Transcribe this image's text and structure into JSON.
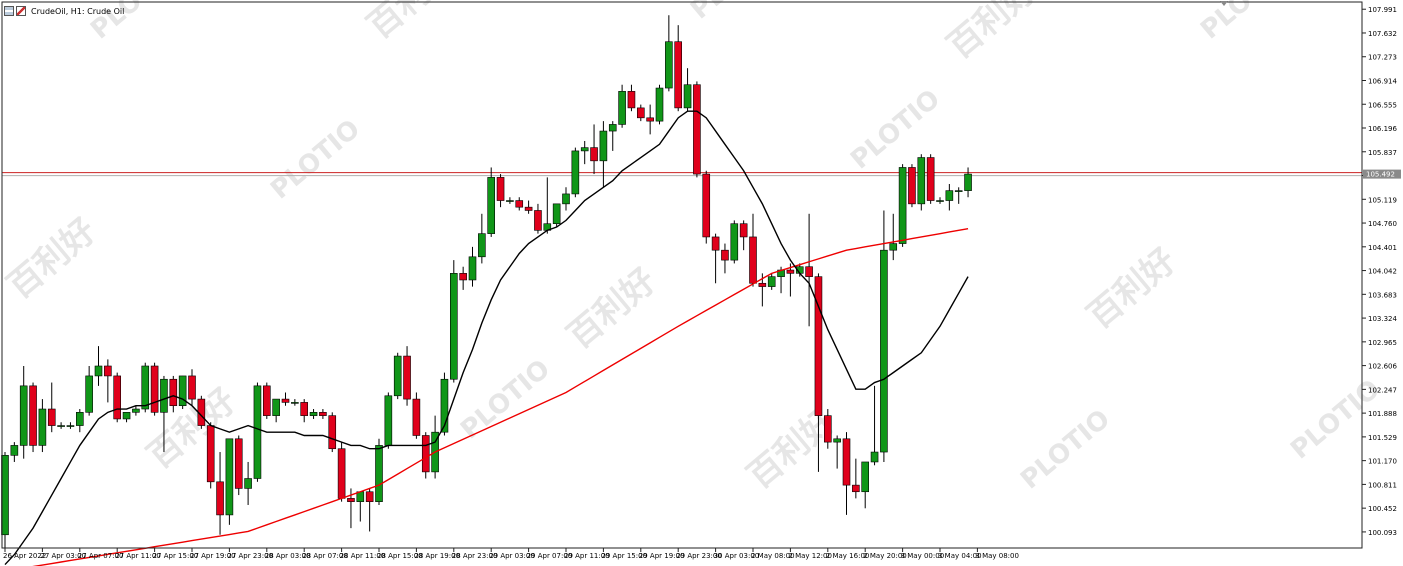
{
  "header": {
    "symbol": "CrudeOil",
    "timeframe": "H1",
    "description": "Crude Oil",
    "title": "CrudeOil, H1:  Crude Oil"
  },
  "icons": [
    "chart-menu-icon",
    "chart-type-icon",
    "collapse-arrow-icon"
  ],
  "watermark": {
    "text": "PLOTIO",
    "chinese": "百利好"
  },
  "colors": {
    "bull": "#109618",
    "bear": "#e0001b",
    "ma_fast": "#000000",
    "ma_slow": "#ee0000",
    "price_line": "#cc2222",
    "grid_axis": "#222222",
    "tag_bg": "#8a8a8a"
  },
  "current_price": "105.492",
  "chart_data": {
    "type": "candlestick",
    "title": "",
    "y_range": [
      99.85,
      108.1
    ],
    "y_ticks": [
      "107.991",
      "107.632",
      "107.273",
      "106.914",
      "106.555",
      "106.196",
      "105.837",
      "105.478",
      "105.119",
      "104.760",
      "104.401",
      "104.042",
      "103.683",
      "103.324",
      "102.965",
      "102.606",
      "102.247",
      "101.888",
      "101.529",
      "101.170",
      "100.811",
      "100.452",
      "100.093"
    ],
    "x_ticks": [
      "26 Apr 2022",
      "27 Apr 03:00",
      "27 Apr 07:00",
      "27 Apr 11:00",
      "27 Apr 15:00",
      "27 Apr 19:00",
      "27 Apr 23:00",
      "28 Apr 03:00",
      "28 Apr 07:00",
      "28 Apr 11:00",
      "28 Apr 15:00",
      "28 Apr 19:00",
      "28 Apr 23:00",
      "29 Apr 03:00",
      "29 Apr 07:00",
      "29 Apr 11:00",
      "29 Apr 15:00",
      "29 Apr 19:00",
      "29 Apr 23:00",
      "30 Apr 03:00",
      "2 May 08:00",
      "2 May 12:00",
      "2 May 16:00",
      "2 May 20:00",
      "3 May 00:00",
      "3 May 04:00",
      "3 May 08:00"
    ],
    "x_tick_bar_index": [
      0,
      4,
      8,
      12,
      16,
      20,
      24,
      28,
      32,
      36,
      40,
      44,
      48,
      52,
      56,
      60,
      64,
      68,
      72,
      76,
      80,
      84,
      88,
      92,
      96,
      100,
      104
    ],
    "candles": [
      {
        "o": 100.05,
        "h": 101.3,
        "l": 99.85,
        "c": 101.25
      },
      {
        "o": 101.25,
        "h": 101.45,
        "l": 101.15,
        "c": 101.4
      },
      {
        "o": 101.4,
        "h": 102.6,
        "l": 101.2,
        "c": 102.3
      },
      {
        "o": 102.3,
        "h": 102.35,
        "l": 101.3,
        "c": 101.4
      },
      {
        "o": 101.4,
        "h": 102.1,
        "l": 101.3,
        "c": 101.95
      },
      {
        "o": 101.95,
        "h": 102.35,
        "l": 101.6,
        "c": 101.7
      },
      {
        "o": 101.7,
        "h": 101.75,
        "l": 101.65,
        "c": 101.7
      },
      {
        "o": 101.7,
        "h": 101.75,
        "l": 101.65,
        "c": 101.7
      },
      {
        "o": 101.7,
        "h": 101.95,
        "l": 101.6,
        "c": 101.9
      },
      {
        "o": 101.9,
        "h": 102.6,
        "l": 101.85,
        "c": 102.45
      },
      {
        "o": 102.45,
        "h": 102.9,
        "l": 102.3,
        "c": 102.6
      },
      {
        "o": 102.6,
        "h": 102.7,
        "l": 102.05,
        "c": 102.45
      },
      {
        "o": 102.45,
        "h": 102.5,
        "l": 101.75,
        "c": 101.8
      },
      {
        "o": 101.8,
        "h": 101.9,
        "l": 101.75,
        "c": 101.9
      },
      {
        "o": 101.9,
        "h": 102.0,
        "l": 101.85,
        "c": 101.95
      },
      {
        "o": 101.95,
        "h": 102.65,
        "l": 101.9,
        "c": 102.6
      },
      {
        "o": 102.6,
        "h": 102.65,
        "l": 101.85,
        "c": 101.9
      },
      {
        "o": 101.9,
        "h": 102.45,
        "l": 101.3,
        "c": 102.4
      },
      {
        "o": 102.4,
        "h": 102.45,
        "l": 101.9,
        "c": 102.0
      },
      {
        "o": 102.0,
        "h": 102.45,
        "l": 101.95,
        "c": 102.45
      },
      {
        "o": 102.45,
        "h": 102.55,
        "l": 102.0,
        "c": 102.1
      },
      {
        "o": 102.1,
        "h": 102.15,
        "l": 101.65,
        "c": 101.7
      },
      {
        "o": 101.7,
        "h": 101.75,
        "l": 100.75,
        "c": 100.85
      },
      {
        "o": 100.85,
        "h": 101.3,
        "l": 100.05,
        "c": 100.35
      },
      {
        "o": 100.35,
        "h": 101.5,
        "l": 100.2,
        "c": 101.5
      },
      {
        "o": 101.5,
        "h": 101.55,
        "l": 100.65,
        "c": 100.75
      },
      {
        "o": 100.75,
        "h": 101.15,
        "l": 100.5,
        "c": 100.9
      },
      {
        "o": 100.9,
        "h": 102.35,
        "l": 100.85,
        "c": 102.3
      },
      {
        "o": 102.3,
        "h": 102.35,
        "l": 101.8,
        "c": 101.85
      },
      {
        "o": 101.85,
        "h": 102.1,
        "l": 101.75,
        "c": 102.1
      },
      {
        "o": 102.1,
        "h": 102.2,
        "l": 102.0,
        "c": 102.05
      },
      {
        "o": 102.05,
        "h": 102.1,
        "l": 102.0,
        "c": 102.05
      },
      {
        "o": 102.05,
        "h": 102.1,
        "l": 101.75,
        "c": 101.85
      },
      {
        "o": 101.85,
        "h": 101.95,
        "l": 101.8,
        "c": 101.9
      },
      {
        "o": 101.9,
        "h": 101.95,
        "l": 101.8,
        "c": 101.85
      },
      {
        "o": 101.85,
        "h": 101.9,
        "l": 101.3,
        "c": 101.35
      },
      {
        "o": 101.35,
        "h": 101.45,
        "l": 100.55,
        "c": 100.6
      },
      {
        "o": 100.6,
        "h": 100.75,
        "l": 100.15,
        "c": 100.55
      },
      {
        "o": 100.55,
        "h": 100.7,
        "l": 100.25,
        "c": 100.7
      },
      {
        "o": 100.7,
        "h": 100.75,
        "l": 100.1,
        "c": 100.55
      },
      {
        "o": 100.55,
        "h": 101.5,
        "l": 100.5,
        "c": 101.4
      },
      {
        "o": 101.4,
        "h": 102.2,
        "l": 101.35,
        "c": 102.15
      },
      {
        "o": 102.15,
        "h": 102.8,
        "l": 102.1,
        "c": 102.75
      },
      {
        "o": 102.75,
        "h": 102.9,
        "l": 102.0,
        "c": 102.1
      },
      {
        "o": 102.1,
        "h": 102.2,
        "l": 101.5,
        "c": 101.55
      },
      {
        "o": 101.55,
        "h": 101.6,
        "l": 100.9,
        "c": 101.0
      },
      {
        "o": 101.0,
        "h": 101.85,
        "l": 100.9,
        "c": 101.6
      },
      {
        "o": 101.6,
        "h": 102.5,
        "l": 101.55,
        "c": 102.4
      },
      {
        "o": 102.4,
        "h": 104.2,
        "l": 102.35,
        "c": 104.0
      },
      {
        "o": 104.0,
        "h": 104.1,
        "l": 103.75,
        "c": 103.9
      },
      {
        "o": 103.9,
        "h": 104.4,
        "l": 103.8,
        "c": 104.25
      },
      {
        "o": 104.25,
        "h": 104.9,
        "l": 104.15,
        "c": 104.6
      },
      {
        "o": 104.6,
        "h": 105.6,
        "l": 104.55,
        "c": 105.45
      },
      {
        "o": 105.45,
        "h": 105.5,
        "l": 105.0,
        "c": 105.1
      },
      {
        "o": 105.1,
        "h": 105.15,
        "l": 105.05,
        "c": 105.1
      },
      {
        "o": 105.1,
        "h": 105.15,
        "l": 104.95,
        "c": 105.0
      },
      {
        "o": 105.0,
        "h": 105.1,
        "l": 104.9,
        "c": 104.95
      },
      {
        "o": 104.95,
        "h": 105.05,
        "l": 104.6,
        "c": 104.65
      },
      {
        "o": 104.65,
        "h": 105.45,
        "l": 104.6,
        "c": 104.75
      },
      {
        "o": 104.75,
        "h": 105.0,
        "l": 104.7,
        "c": 105.05
      },
      {
        "o": 105.05,
        "h": 105.3,
        "l": 104.95,
        "c": 105.2
      },
      {
        "o": 105.2,
        "h": 105.9,
        "l": 105.15,
        "c": 105.85
      },
      {
        "o": 105.85,
        "h": 106.0,
        "l": 105.65,
        "c": 105.9
      },
      {
        "o": 105.9,
        "h": 106.25,
        "l": 105.5,
        "c": 105.7
      },
      {
        "o": 105.7,
        "h": 106.3,
        "l": 105.3,
        "c": 106.15
      },
      {
        "o": 106.15,
        "h": 106.3,
        "l": 105.85,
        "c": 106.25
      },
      {
        "o": 106.25,
        "h": 106.85,
        "l": 106.2,
        "c": 106.75
      },
      {
        "o": 106.75,
        "h": 106.85,
        "l": 106.45,
        "c": 106.5
      },
      {
        "o": 106.5,
        "h": 106.55,
        "l": 106.3,
        "c": 106.35
      },
      {
        "o": 106.35,
        "h": 106.55,
        "l": 106.1,
        "c": 106.3
      },
      {
        "o": 106.3,
        "h": 106.85,
        "l": 106.25,
        "c": 106.8
      },
      {
        "o": 106.8,
        "h": 107.9,
        "l": 106.75,
        "c": 107.5
      },
      {
        "o": 107.5,
        "h": 107.75,
        "l": 106.45,
        "c": 106.5
      },
      {
        "o": 106.5,
        "h": 107.1,
        "l": 106.45,
        "c": 106.85
      },
      {
        "o": 106.85,
        "h": 106.9,
        "l": 105.45,
        "c": 105.5
      },
      {
        "o": 105.5,
        "h": 105.55,
        "l": 104.45,
        "c": 104.55
      },
      {
        "o": 104.55,
        "h": 104.6,
        "l": 103.85,
        "c": 104.35
      },
      {
        "o": 104.35,
        "h": 104.45,
        "l": 104.0,
        "c": 104.2
      },
      {
        "o": 104.2,
        "h": 104.8,
        "l": 104.15,
        "c": 104.75
      },
      {
        "o": 104.75,
        "h": 104.8,
        "l": 104.35,
        "c": 104.55
      },
      {
        "o": 104.55,
        "h": 104.9,
        "l": 103.8,
        "c": 103.85
      },
      {
        "o": 103.85,
        "h": 104.0,
        "l": 103.5,
        "c": 103.8
      },
      {
        "o": 103.8,
        "h": 104.0,
        "l": 103.75,
        "c": 103.95
      },
      {
        "o": 103.95,
        "h": 104.1,
        "l": 103.7,
        "c": 104.05
      },
      {
        "o": 104.05,
        "h": 104.15,
        "l": 103.65,
        "c": 104.0
      },
      {
        "o": 104.0,
        "h": 104.15,
        "l": 103.95,
        "c": 104.1
      },
      {
        "o": 104.1,
        "h": 104.9,
        "l": 103.2,
        "c": 103.95
      },
      {
        "o": 103.95,
        "h": 104.0,
        "l": 101.0,
        "c": 101.85
      },
      {
        "o": 101.85,
        "h": 101.95,
        "l": 101.35,
        "c": 101.45
      },
      {
        "o": 101.45,
        "h": 101.55,
        "l": 101.05,
        "c": 101.5
      },
      {
        "o": 101.5,
        "h": 101.6,
        "l": 100.35,
        "c": 100.8
      },
      {
        "o": 100.8,
        "h": 101.2,
        "l": 100.6,
        "c": 100.7
      },
      {
        "o": 100.7,
        "h": 101.1,
        "l": 100.45,
        "c": 101.15
      },
      {
        "o": 101.15,
        "h": 102.3,
        "l": 101.1,
        "c": 101.3
      },
      {
        "o": 101.3,
        "h": 104.95,
        "l": 101.15,
        "c": 104.35
      },
      {
        "o": 104.35,
        "h": 104.9,
        "l": 104.2,
        "c": 104.45
      },
      {
        "o": 104.45,
        "h": 105.65,
        "l": 104.4,
        "c": 105.6
      },
      {
        "o": 105.6,
        "h": 105.65,
        "l": 105.0,
        "c": 105.05
      },
      {
        "o": 105.05,
        "h": 105.8,
        "l": 104.95,
        "c": 105.75
      },
      {
        "o": 105.75,
        "h": 105.8,
        "l": 105.05,
        "c": 105.1
      },
      {
        "o": 105.1,
        "h": 105.15,
        "l": 105.05,
        "c": 105.1
      },
      {
        "o": 105.1,
        "h": 105.35,
        "l": 104.95,
        "c": 105.25
      },
      {
        "o": 105.25,
        "h": 105.3,
        "l": 105.05,
        "c": 105.25
      },
      {
        "o": 105.25,
        "h": 105.6,
        "l": 105.15,
        "c": 105.5
      }
    ],
    "ma_fast": [
      99.6,
      99.75,
      99.95,
      100.15,
      100.4,
      100.65,
      100.9,
      101.15,
      101.4,
      101.6,
      101.8,
      101.9,
      101.95,
      101.95,
      102.0,
      102.0,
      102.05,
      102.1,
      102.15,
      102.1,
      102.0,
      101.85,
      101.7,
      101.65,
      101.6,
      101.65,
      101.7,
      101.65,
      101.6,
      101.6,
      101.6,
      101.6,
      101.55,
      101.55,
      101.55,
      101.5,
      101.45,
      101.4,
      101.4,
      101.35,
      101.35,
      101.4,
      101.4,
      101.4,
      101.4,
      101.4,
      101.45,
      101.7,
      102.1,
      102.5,
      102.85,
      103.25,
      103.6,
      103.9,
      104.1,
      104.3,
      104.45,
      104.55,
      104.65,
      104.7,
      104.8,
      104.95,
      105.1,
      105.2,
      105.3,
      105.4,
      105.55,
      105.65,
      105.75,
      105.85,
      105.95,
      106.15,
      106.35,
      106.45,
      106.45,
      106.35,
      106.15,
      105.95,
      105.75,
      105.55,
      105.3,
      105.05,
      104.75,
      104.45,
      104.2,
      104.0,
      103.85,
      103.5,
      103.15,
      102.85,
      102.55,
      102.25,
      102.25,
      102.35,
      102.4,
      102.5,
      102.6,
      102.7,
      102.8,
      103.0,
      103.2,
      103.45,
      103.7,
      103.95
    ]
  }
}
